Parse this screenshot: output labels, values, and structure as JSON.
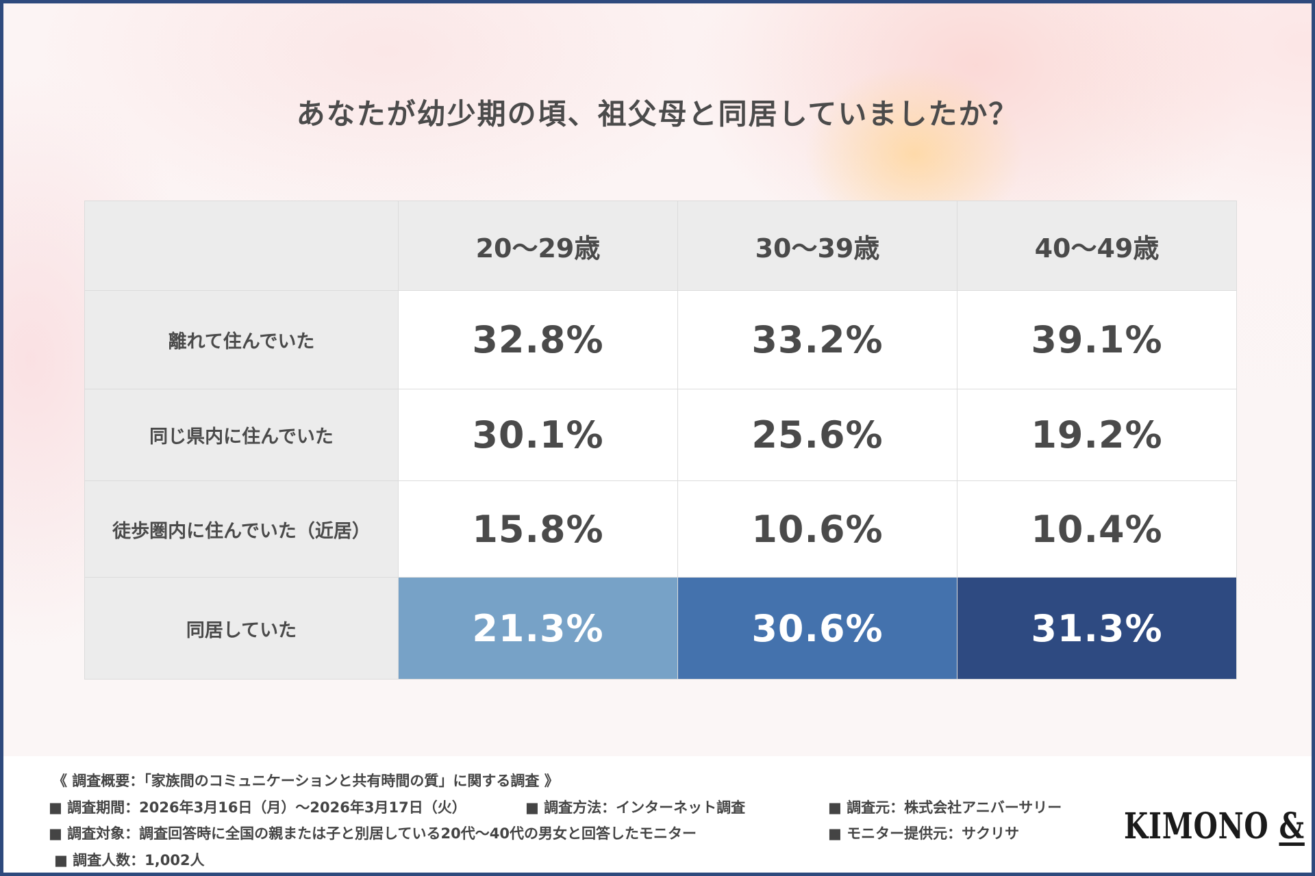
{
  "title": "あなたが幼少期の頃、祖父母と同居していましたか？",
  "chart_data": {
    "type": "table",
    "columns": [
      "20〜29歳",
      "30〜39歳",
      "40〜49歳"
    ],
    "rows": [
      {
        "label": "離れて住んでいた",
        "values": [
          "32.8%",
          "33.2%",
          "39.1%"
        ]
      },
      {
        "label": "同じ県内に住んでいた",
        "values": [
          "30.1%",
          "25.6%",
          "19.2%"
        ]
      },
      {
        "label": "徒歩圏内に住んでいた（近居）",
        "values": [
          "15.8%",
          "10.6%",
          "10.4%"
        ]
      },
      {
        "label": "同居していた",
        "values": [
          "21.3%",
          "30.6%",
          "31.3%"
        ]
      }
    ],
    "highlight_row_colors": [
      "#77a2c7",
      "#4472ad",
      "#2e4a81"
    ]
  },
  "footer": {
    "summary": "《 調査概要：「家族間のコミュニケーションと共有時間の質」に関する調査 》",
    "period": "■ 調査期間：2026年3月16日（月）〜2026年3月17日（火）",
    "method": "■ 調査方法：インターネット調査",
    "source": "■ 調査元：株式会社アニバーサリー",
    "target": "■ 調査対象：調査回答時に全国の親または子と別居している20代〜40代の男女と回答したモニター",
    "provider": "■ モニター提供元：サクリサ",
    "count": "■ 調査人数：1,002人"
  },
  "logo": {
    "text": "KIMONO",
    "amp": "&"
  }
}
